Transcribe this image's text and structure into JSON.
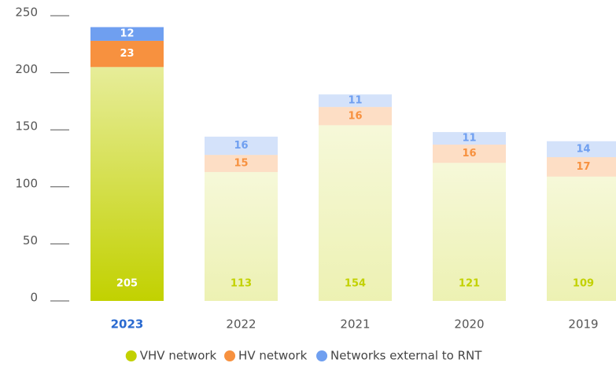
{
  "chart_data": {
    "type": "stacked_bar",
    "categories": [
      "2023",
      "2022",
      "2021",
      "2020",
      "2019"
    ],
    "series": [
      {
        "name": "VHV network",
        "color": "#c2d100",
        "values": [
          205,
          113,
          154,
          121,
          109
        ]
      },
      {
        "name": "HV network",
        "color": "#f7913f",
        "values": [
          23,
          15,
          16,
          16,
          17
        ]
      },
      {
        "name": "Networks external to RNT",
        "color": "#6f9ff0",
        "values": [
          12,
          16,
          11,
          11,
          14
        ]
      }
    ],
    "ylim": [
      0,
      250
    ],
    "yticks": [
      0,
      50,
      100,
      150,
      200,
      250
    ],
    "highlight": 0,
    "highlight_color": "#2a6ad0"
  }
}
